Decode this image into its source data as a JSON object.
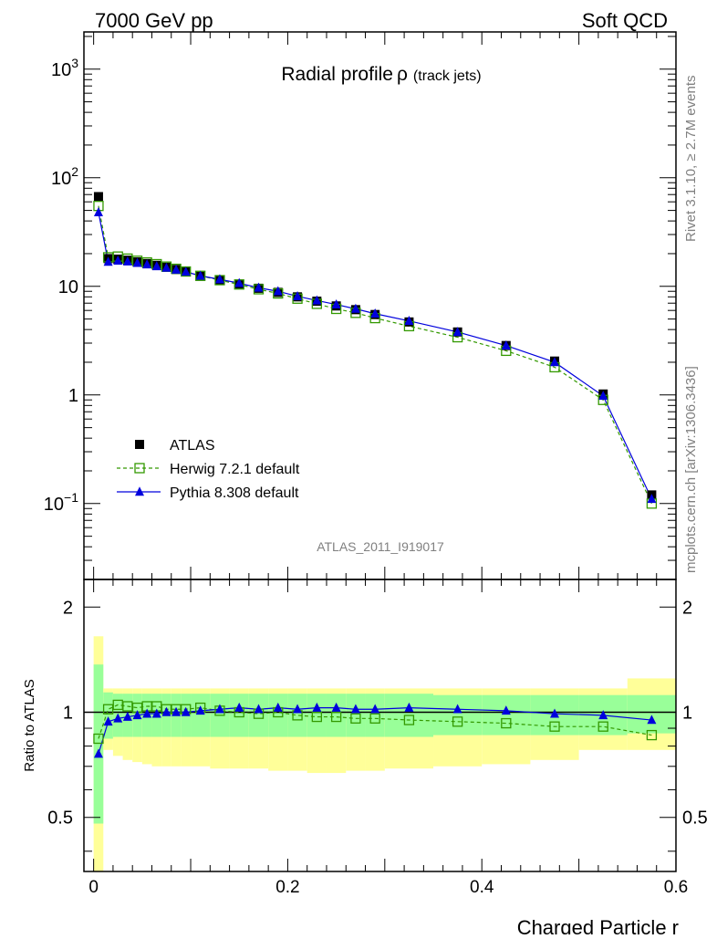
{
  "header": {
    "left": "7000 GeV pp",
    "right": "Soft QCD"
  },
  "main_title": "Radial profile",
  "main_title_symbol": "ρ",
  "main_title_suffix": "(track jets)",
  "side_label_top": "Rivet 3.1.10, ≥ 2.7M events",
  "side_label_bottom": "mcplots.cern.ch [arXiv:1306.3436]",
  "analysis_label": "ATLAS_2011_I919017",
  "ratio_ylabel": "Ratio to ATLAS",
  "xlabel": "Charged Particle r",
  "legend": [
    {
      "name": "ATLAS",
      "marker": "filled-square",
      "color": "#000000"
    },
    {
      "name": "Herwig 7.2.1 default",
      "marker": "open-square",
      "color": "#339900",
      "line": "dashed"
    },
    {
      "name": "Pythia 8.308 default",
      "marker": "filled-triangle",
      "color": "#0000dd",
      "line": "solid"
    }
  ],
  "chart_data": [
    {
      "type": "line",
      "title": "Radial profile ρ (track jets)",
      "yscale": "log",
      "xlim": [
        -0.01,
        0.6
      ],
      "ylim": [
        0.02,
        2200
      ],
      "x_ticks": [
        0,
        0.2,
        0.4,
        0.6
      ],
      "y_tick_labels": [
        "10^-1",
        "1",
        "10",
        "10^2",
        "10^3"
      ],
      "y_tick_values": [
        0.1,
        1,
        10,
        100,
        1000
      ],
      "x": [
        0.005,
        0.015,
        0.025,
        0.035,
        0.045,
        0.055,
        0.065,
        0.075,
        0.085,
        0.095,
        0.11,
        0.13,
        0.15,
        0.17,
        0.19,
        0.21,
        0.23,
        0.25,
        0.27,
        0.29,
        0.325,
        0.375,
        0.425,
        0.475,
        0.525,
        0.575
      ],
      "series": [
        {
          "name": "ATLAS",
          "values": [
            67,
            18,
            17.8,
            17.4,
            16.8,
            16.2,
            15.6,
            15,
            14.3,
            13.6,
            12.4,
            11.4,
            10.5,
            9.6,
            8.8,
            8,
            7.3,
            6.6,
            6.1,
            5.5,
            4.7,
            3.8,
            2.85,
            2.05,
            1.02,
            0.12
          ]
        },
        {
          "name": "Herwig 7.2.1 default",
          "values": [
            55,
            18.5,
            18.8,
            18,
            17.2,
            16.6,
            16,
            15.2,
            14.5,
            13.7,
            12.5,
            11.4,
            10.4,
            9.4,
            8.6,
            7.7,
            6.9,
            6.2,
            5.7,
            5.1,
            4.3,
            3.4,
            2.55,
            1.8,
            0.9,
            0.1
          ]
        },
        {
          "name": "Pythia 8.308 default",
          "values": [
            48,
            16.8,
            17.2,
            16.9,
            16.4,
            15.9,
            15.3,
            14.8,
            14.2,
            13.6,
            12.5,
            11.6,
            10.7,
            9.7,
            9,
            8.1,
            7.4,
            6.8,
            6.2,
            5.6,
            4.8,
            3.8,
            2.85,
            2,
            0.98,
            0.11
          ]
        }
      ]
    },
    {
      "type": "line",
      "title": "",
      "ylabel": "Ratio to ATLAS",
      "xlabel": "Charged Particle r",
      "xlim": [
        -0.01,
        0.6
      ],
      "ylim": [
        0.35,
        2.4
      ],
      "yscale": "log",
      "x_ticks": [
        0,
        0.2,
        0.4,
        0.6
      ],
      "y_ticks": [
        0.5,
        1,
        2
      ],
      "reference_line": 1,
      "x": [
        0.005,
        0.015,
        0.025,
        0.035,
        0.045,
        0.055,
        0.065,
        0.075,
        0.085,
        0.095,
        0.11,
        0.13,
        0.15,
        0.17,
        0.19,
        0.21,
        0.23,
        0.25,
        0.27,
        0.29,
        0.325,
        0.375,
        0.425,
        0.475,
        0.525,
        0.575
      ],
      "bin_edges": [
        0,
        0.01,
        0.02,
        0.03,
        0.04,
        0.05,
        0.06,
        0.07,
        0.08,
        0.09,
        0.1,
        0.12,
        0.14,
        0.16,
        0.18,
        0.2,
        0.22,
        0.24,
        0.26,
        0.28,
        0.3,
        0.35,
        0.4,
        0.45,
        0.5,
        0.55,
        0.6
      ],
      "band_inner": {
        "lo": [
          0.48,
          0.84,
          0.85,
          0.85,
          0.85,
          0.85,
          0.85,
          0.85,
          0.85,
          0.85,
          0.85,
          0.85,
          0.85,
          0.85,
          0.85,
          0.85,
          0.85,
          0.85,
          0.85,
          0.85,
          0.85,
          0.86,
          0.86,
          0.86,
          0.86,
          0.87
        ],
        "hi": [
          1.37,
          1.14,
          1.13,
          1.13,
          1.13,
          1.13,
          1.13,
          1.13,
          1.13,
          1.13,
          1.13,
          1.13,
          1.13,
          1.13,
          1.13,
          1.13,
          1.13,
          1.13,
          1.13,
          1.13,
          1.13,
          1.12,
          1.12,
          1.12,
          1.12,
          1.12
        ]
      },
      "band_outer": {
        "lo": [
          0.35,
          0.78,
          0.75,
          0.73,
          0.72,
          0.71,
          0.7,
          0.7,
          0.7,
          0.7,
          0.7,
          0.69,
          0.69,
          0.69,
          0.68,
          0.68,
          0.67,
          0.67,
          0.68,
          0.68,
          0.69,
          0.7,
          0.71,
          0.73,
          0.78,
          0.78
        ],
        "hi": [
          1.65,
          1.17,
          1.17,
          1.17,
          1.17,
          1.17,
          1.17,
          1.17,
          1.17,
          1.17,
          1.17,
          1.17,
          1.17,
          1.17,
          1.17,
          1.17,
          1.17,
          1.17,
          1.17,
          1.17,
          1.17,
          1.17,
          1.17,
          1.17,
          1.17,
          1.25
        ]
      },
      "series": [
        {
          "name": "Herwig 7.2.1 default",
          "values": [
            0.84,
            1.02,
            1.05,
            1.04,
            1.03,
            1.04,
            1.04,
            1.02,
            1.02,
            1.02,
            1.03,
            1.01,
            1,
            0.99,
            1,
            0.98,
            0.97,
            0.97,
            0.96,
            0.96,
            0.95,
            0.94,
            0.93,
            0.91,
            0.91,
            0.86
          ]
        },
        {
          "name": "Pythia 8.308 default",
          "values": [
            0.76,
            0.94,
            0.96,
            0.97,
            0.98,
            0.99,
            0.99,
            1,
            1,
            1,
            1.01,
            1.02,
            1.03,
            1.02,
            1.03,
            1.02,
            1.03,
            1.03,
            1.02,
            1.02,
            1.03,
            1.02,
            1.01,
            0.99,
            0.98,
            0.95
          ]
        }
      ]
    }
  ]
}
